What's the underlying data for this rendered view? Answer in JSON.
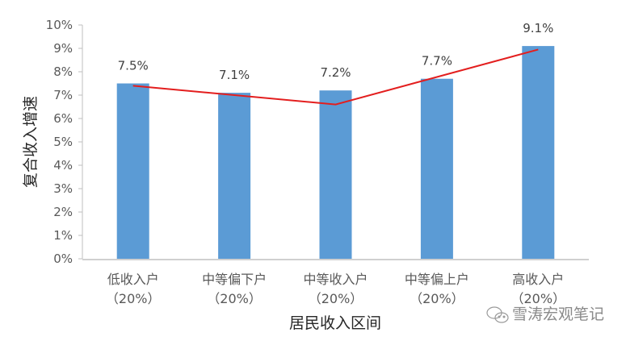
{
  "chart_data": {
    "type": "bar",
    "title": "",
    "xlabel": "居民收入区间",
    "ylabel": "复合收入增速",
    "ylim": [
      0,
      10
    ],
    "yticks": [
      "0%",
      "1%",
      "2%",
      "3%",
      "4%",
      "5%",
      "6%",
      "7%",
      "8%",
      "9%",
      "10%"
    ],
    "grid": false,
    "legend": null,
    "categories": [
      {
        "name": "低收入户",
        "sub": "（20%）"
      },
      {
        "name": "中等偏下户",
        "sub": "（20%）"
      },
      {
        "name": "中等收入户",
        "sub": "（20%）"
      },
      {
        "name": "中等偏上户",
        "sub": "（20%）"
      },
      {
        "name": "高收入户",
        "sub": "（20%）"
      }
    ],
    "series": [
      {
        "name": "复合收入增速",
        "type": "bar",
        "color": "#5B9BD5",
        "values": [
          7.5,
          7.1,
          7.2,
          7.7,
          9.1
        ],
        "labels": [
          "7.5%",
          "7.1%",
          "7.2%",
          "7.7%",
          "9.1%"
        ]
      }
    ],
    "annotations": [
      {
        "type": "trend-line",
        "color": "#E31E1E",
        "points": [
          [
            0,
            7.4
          ],
          [
            2,
            6.6
          ],
          [
            4,
            8.95
          ]
        ]
      }
    ]
  },
  "watermark": {
    "text": "雪涛宏观笔记"
  }
}
